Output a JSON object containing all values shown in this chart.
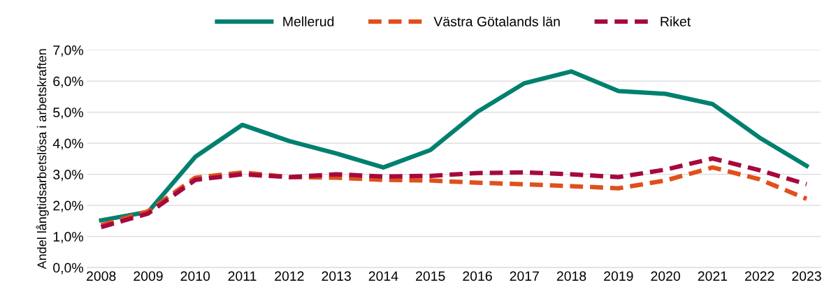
{
  "chart_data": {
    "type": "line",
    "ylabel": "Andel långtidsarbetslösa i arbetskraften",
    "categories": [
      "2008",
      "2009",
      "2010",
      "2011",
      "2012",
      "2013",
      "2014",
      "2015",
      "2016",
      "2017",
      "2018",
      "2019",
      "2020",
      "2021",
      "2022",
      "2023"
    ],
    "series": [
      {
        "name": "Mellerud",
        "color": "#00806f",
        "line_style": "solid",
        "values": [
          1.52,
          1.79,
          3.56,
          4.59,
          4.07,
          3.67,
          3.22,
          3.78,
          5.01,
          5.93,
          6.31,
          5.68,
          5.59,
          5.26,
          4.18,
          3.27
        ]
      },
      {
        "name": "Västra Götalands län",
        "color": "#e0501a",
        "line_style": "dashed",
        "values": [
          1.36,
          1.81,
          2.89,
          3.06,
          2.91,
          2.89,
          2.82,
          2.8,
          2.73,
          2.68,
          2.62,
          2.55,
          2.8,
          3.22,
          2.84,
          2.21
        ]
      },
      {
        "name": "Riket",
        "color": "#a6093d",
        "line_style": "dashed",
        "values": [
          1.3,
          1.74,
          2.82,
          3.0,
          2.91,
          3.0,
          2.93,
          2.95,
          3.04,
          3.06,
          3.0,
          2.91,
          3.15,
          3.51,
          3.13,
          2.68
        ]
      }
    ],
    "ylim": [
      0,
      7
    ],
    "yticks": [
      {
        "value": 0,
        "label": "0,0%"
      },
      {
        "value": 1,
        "label": "1,0%"
      },
      {
        "value": 2,
        "label": "2,0%"
      },
      {
        "value": 3,
        "label": "3,0%"
      },
      {
        "value": 4,
        "label": "4,0%"
      },
      {
        "value": 5,
        "label": "5,0%"
      },
      {
        "value": 6,
        "label": "6,0%"
      },
      {
        "value": 7,
        "label": "7,0%"
      }
    ],
    "grid": "y",
    "legend": "top",
    "marker": "none"
  }
}
